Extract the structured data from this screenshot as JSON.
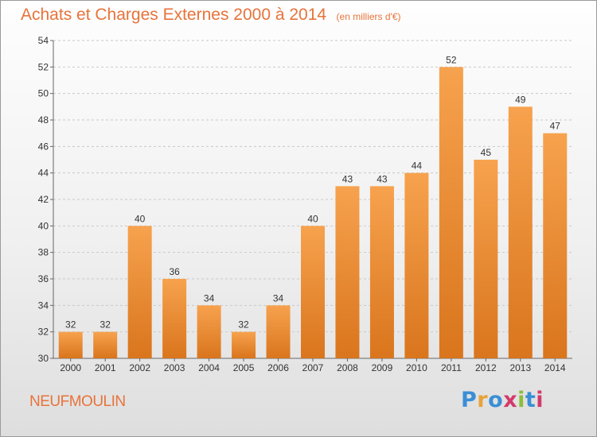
{
  "header": {
    "title": "Achats et Charges Externes 2000 à 2014",
    "subtitle": "(en milliers d'€)"
  },
  "footer": {
    "commune": "NEUFMOULIN",
    "logo": {
      "letters": [
        "P",
        "r",
        "o",
        "x",
        "i",
        "t",
        "i"
      ],
      "colors": [
        "#3a8fd6",
        "#e8a33a",
        "#3a8fd6",
        "#d23a6a",
        "#8abf3a",
        "#3a8fd6",
        "#d23a6a"
      ]
    }
  },
  "colors": {
    "bar_top": "#f7a24e",
    "bar_bottom": "#d9751d",
    "title": "#e8733a",
    "grid": "#c9c9c9"
  },
  "chart_data": {
    "type": "bar",
    "categories": [
      "2000",
      "2001",
      "2002",
      "2003",
      "2004",
      "2005",
      "2006",
      "2007",
      "2008",
      "2009",
      "2010",
      "2011",
      "2012",
      "2013",
      "2014"
    ],
    "values": [
      32,
      32,
      40,
      36,
      34,
      32,
      34,
      40,
      43,
      43,
      44,
      52,
      45,
      49,
      47
    ],
    "ylim": [
      30,
      54
    ],
    "yticks": [
      30,
      32,
      34,
      36,
      38,
      40,
      42,
      44,
      46,
      48,
      50,
      52,
      54
    ],
    "grid": "horizontal dashed",
    "data_labels": true
  }
}
